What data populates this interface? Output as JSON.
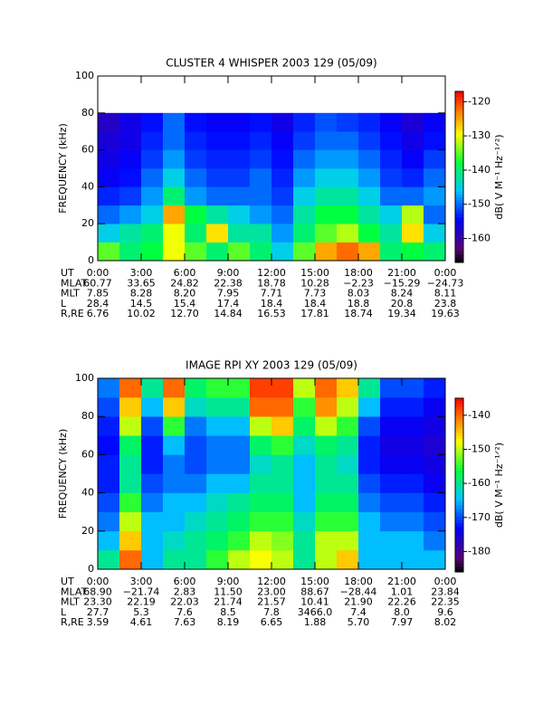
{
  "chart_data": [
    {
      "type": "heatmap",
      "title": "CLUSTER 4 WHISPER 2003 129 (05/09)",
      "y_label": "FREQUENCY (kHz)",
      "colorbar_label": "dB( V M⁻¹ Hz⁻¹ᐟ²)",
      "xlim": [
        0,
        24
      ],
      "ylim": [
        0,
        100
      ],
      "xticks": [
        {
          "value": 0,
          "label": "0:00"
        },
        {
          "value": 3,
          "label": "3:00"
        },
        {
          "value": 6,
          "label": "6:00"
        },
        {
          "value": 9,
          "label": "9:00"
        },
        {
          "value": 12,
          "label": "12:00"
        },
        {
          "value": 15,
          "label": "15:00"
        },
        {
          "value": 18,
          "label": "18:00"
        },
        {
          "value": 21,
          "label": "21:00"
        },
        {
          "value": 24,
          "label": "0:00"
        }
      ],
      "yticks": [
        0,
        20,
        40,
        60,
        80,
        100
      ],
      "zlim": [
        -167,
        -117
      ],
      "zticks": [
        -120,
        -130,
        -140,
        -150,
        -160
      ],
      "x_bins": [
        0,
        1.5,
        3,
        4.5,
        6,
        7.5,
        9,
        10.5,
        12,
        13.5,
        15,
        16.5,
        18,
        19.5,
        21,
        22.5,
        24
      ],
      "y_bins": [
        0,
        10,
        20,
        30,
        40,
        50,
        60,
        70,
        80
      ],
      "z": [
        [
          -135,
          -140,
          -138,
          -130,
          -135,
          -140,
          -135,
          -140,
          -145,
          -135,
          -125,
          -122,
          -125,
          -140,
          -138,
          -140
        ],
        [
          -145,
          -142,
          -140,
          -130,
          -140,
          -128,
          -142,
          -142,
          -148,
          -140,
          -135,
          -132,
          -138,
          -142,
          -128,
          -145
        ],
        [
          -150,
          -148,
          -145,
          -125,
          -138,
          -142,
          -145,
          -148,
          -150,
          -142,
          -138,
          -138,
          -142,
          -145,
          -132,
          -150
        ],
        [
          -153,
          -152,
          -148,
          -140,
          -148,
          -150,
          -150,
          -150,
          -152,
          -145,
          -142,
          -142,
          -145,
          -150,
          -150,
          -148
        ],
        [
          -155,
          -154,
          -150,
          -145,
          -150,
          -152,
          -152,
          -150,
          -153,
          -148,
          -145,
          -145,
          -148,
          -152,
          -153,
          -150
        ],
        [
          -156,
          -155,
          -152,
          -148,
          -152,
          -153,
          -153,
          -152,
          -154,
          -150,
          -148,
          -148,
          -150,
          -153,
          -155,
          -152
        ],
        [
          -157,
          -156,
          -153,
          -150,
          -153,
          -154,
          -154,
          -153,
          -155,
          -152,
          -150,
          -150,
          -152,
          -154,
          -156,
          -154
        ],
        [
          -158,
          -156,
          -154,
          -150,
          -154,
          -155,
          -155,
          -154,
          -156,
          -153,
          -151,
          -152,
          -153,
          -155,
          -157,
          -155
        ]
      ],
      "xtick_row_label": "UT",
      "ephemeris": [
        {
          "label": "MLAT",
          "values": [
            "60.77",
            "33.65",
            "24.82",
            "22.38",
            "18.78",
            "10.28",
            "−2.23",
            "−15.29",
            "−24.73"
          ]
        },
        {
          "label": "MLT",
          "values": [
            "7.85",
            "8.28",
            "8.20",
            "7.95",
            "7.71",
            "7.73",
            "8.03",
            "8.24",
            "8.11"
          ]
        },
        {
          "label": "L",
          "values": [
            "28.4",
            "14.5",
            "15.4",
            "17.4",
            "18.4",
            "18.4",
            "18.8",
            "20.8",
            "23.8"
          ]
        },
        {
          "label": "R,RE",
          "values": [
            "6.76",
            "10.02",
            "12.70",
            "14.84",
            "16.53",
            "17.81",
            "18.74",
            "19.34",
            "19.63"
          ]
        }
      ]
    },
    {
      "type": "heatmap",
      "title": "IMAGE RPI XY 2003 129 (05/09)",
      "y_label": "FREQUENCY (kHz)",
      "colorbar_label": "dB( V M⁻¹ Hz⁻¹ᐟ²)",
      "xlim": [
        0,
        24
      ],
      "ylim": [
        0,
        100
      ],
      "xticks": [
        {
          "value": 0,
          "label": "0:00"
        },
        {
          "value": 3,
          "label": "3:00"
        },
        {
          "value": 6,
          "label": "6:00"
        },
        {
          "value": 9,
          "label": "9:00"
        },
        {
          "value": 12,
          "label": "12:00"
        },
        {
          "value": 15,
          "label": "15:00"
        },
        {
          "value": 18,
          "label": "18:00"
        },
        {
          "value": 21,
          "label": "21:00"
        },
        {
          "value": 24,
          "label": "0:00"
        }
      ],
      "yticks": [
        0,
        20,
        40,
        60,
        80,
        100
      ],
      "zlim": [
        -186,
        -135
      ],
      "zticks": [
        -140,
        -150,
        -160,
        -170,
        -180
      ],
      "x_bins": [
        0,
        1.5,
        3,
        4.5,
        6,
        7.5,
        9,
        10.5,
        12,
        13.5,
        15,
        16.5,
        18,
        19.5,
        21,
        22.5,
        24
      ],
      "y_bins": [
        0,
        10,
        20,
        30,
        40,
        50,
        60,
        70,
        80,
        90,
        100
      ],
      "z": [
        [
          -160,
          -140,
          -165,
          -160,
          -160,
          -155,
          -150,
          -148,
          -150,
          -160,
          -150,
          -145,
          -165,
          -165,
          -165,
          -165
        ],
        [
          -165,
          -145,
          -165,
          -162,
          -160,
          -158,
          -155,
          -150,
          -152,
          -160,
          -150,
          -150,
          -165,
          -165,
          -165,
          -168
        ],
        [
          -168,
          -150,
          -165,
          -165,
          -162,
          -160,
          -158,
          -155,
          -155,
          -162,
          -155,
          -155,
          -165,
          -168,
          -168,
          -170
        ],
        [
          -170,
          -155,
          -168,
          -165,
          -165,
          -162,
          -160,
          -158,
          -158,
          -165,
          -158,
          -158,
          -168,
          -170,
          -170,
          -172
        ],
        [
          -172,
          -160,
          -170,
          -168,
          -168,
          -165,
          -165,
          -160,
          -160,
          -165,
          -160,
          -160,
          -170,
          -172,
          -172,
          -174
        ],
        [
          -172,
          -160,
          -172,
          -168,
          -170,
          -168,
          -168,
          -162,
          -160,
          -165,
          -160,
          -162,
          -172,
          -174,
          -174,
          -175
        ],
        [
          -173,
          -158,
          -172,
          -165,
          -170,
          -168,
          -168,
          -158,
          -155,
          -162,
          -158,
          -160,
          -172,
          -175,
          -175,
          -176
        ],
        [
          -172,
          -150,
          -170,
          -155,
          -168,
          -165,
          -165,
          -150,
          -145,
          -158,
          -150,
          -155,
          -170,
          -174,
          -174,
          -175
        ],
        [
          -170,
          -145,
          -165,
          -145,
          -162,
          -160,
          -160,
          -140,
          -140,
          -155,
          -142,
          -150,
          -165,
          -172,
          -172,
          -174
        ],
        [
          -168,
          -140,
          -160,
          -140,
          -158,
          -155,
          -155,
          -138,
          -138,
          -150,
          -140,
          -145,
          -160,
          -170,
          -170,
          -172
        ]
      ],
      "xtick_row_label": "UT",
      "ephemeris": [
        {
          "label": "MLAT",
          "values": [
            "68.90",
            "−21.74",
            "2.83",
            "11.50",
            "23.00",
            "88.67",
            "−28.44",
            "1.01",
            "23.84"
          ]
        },
        {
          "label": "MLT",
          "values": [
            "23.30",
            "22.19",
            "22.03",
            "21.74",
            "21.57",
            "10.41",
            "21.90",
            "22.26",
            "22.35"
          ]
        },
        {
          "label": "L",
          "values": [
            "27.7",
            "5.3",
            "7.6",
            "8.5",
            "7.8",
            "3466.0",
            "7.4",
            "8.0",
            "9.6"
          ]
        },
        {
          "label": "R,RE",
          "values": [
            "3.59",
            "4.61",
            "7.63",
            "8.19",
            "6.65",
            "1.88",
            "5.70",
            "7.97",
            "8.02"
          ]
        }
      ]
    }
  ]
}
